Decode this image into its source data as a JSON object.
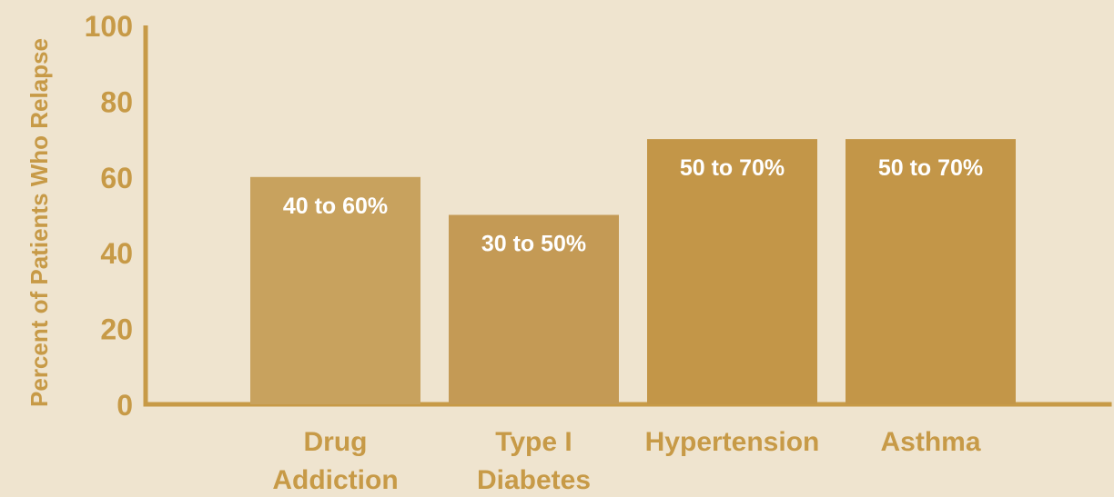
{
  "chart_data": {
    "type": "bar",
    "categories": [
      [
        "Drug",
        "Addiction"
      ],
      [
        "Type I",
        "Diabetes"
      ],
      [
        "Hypertension"
      ],
      [
        "Asthma"
      ]
    ],
    "values": [
      60,
      50,
      70,
      70
    ],
    "data_labels": [
      "40 to 60%",
      "30 to 50%",
      "50 to 70%",
      "50 to 70%"
    ],
    "ylabel": "Percent of Patients Who Relapse",
    "yticks": [
      "0",
      "20",
      "40",
      "60",
      "80",
      "100"
    ],
    "ylim": [
      0,
      100
    ],
    "grid": false,
    "colors": {
      "background": "#efe4cf",
      "axis": "#c79a47",
      "text": "#c79a47",
      "bars": [
        "#c8a25e",
        "#c49a55",
        "#c39648",
        "#c39648"
      ],
      "data_label": "#ffffff"
    }
  }
}
